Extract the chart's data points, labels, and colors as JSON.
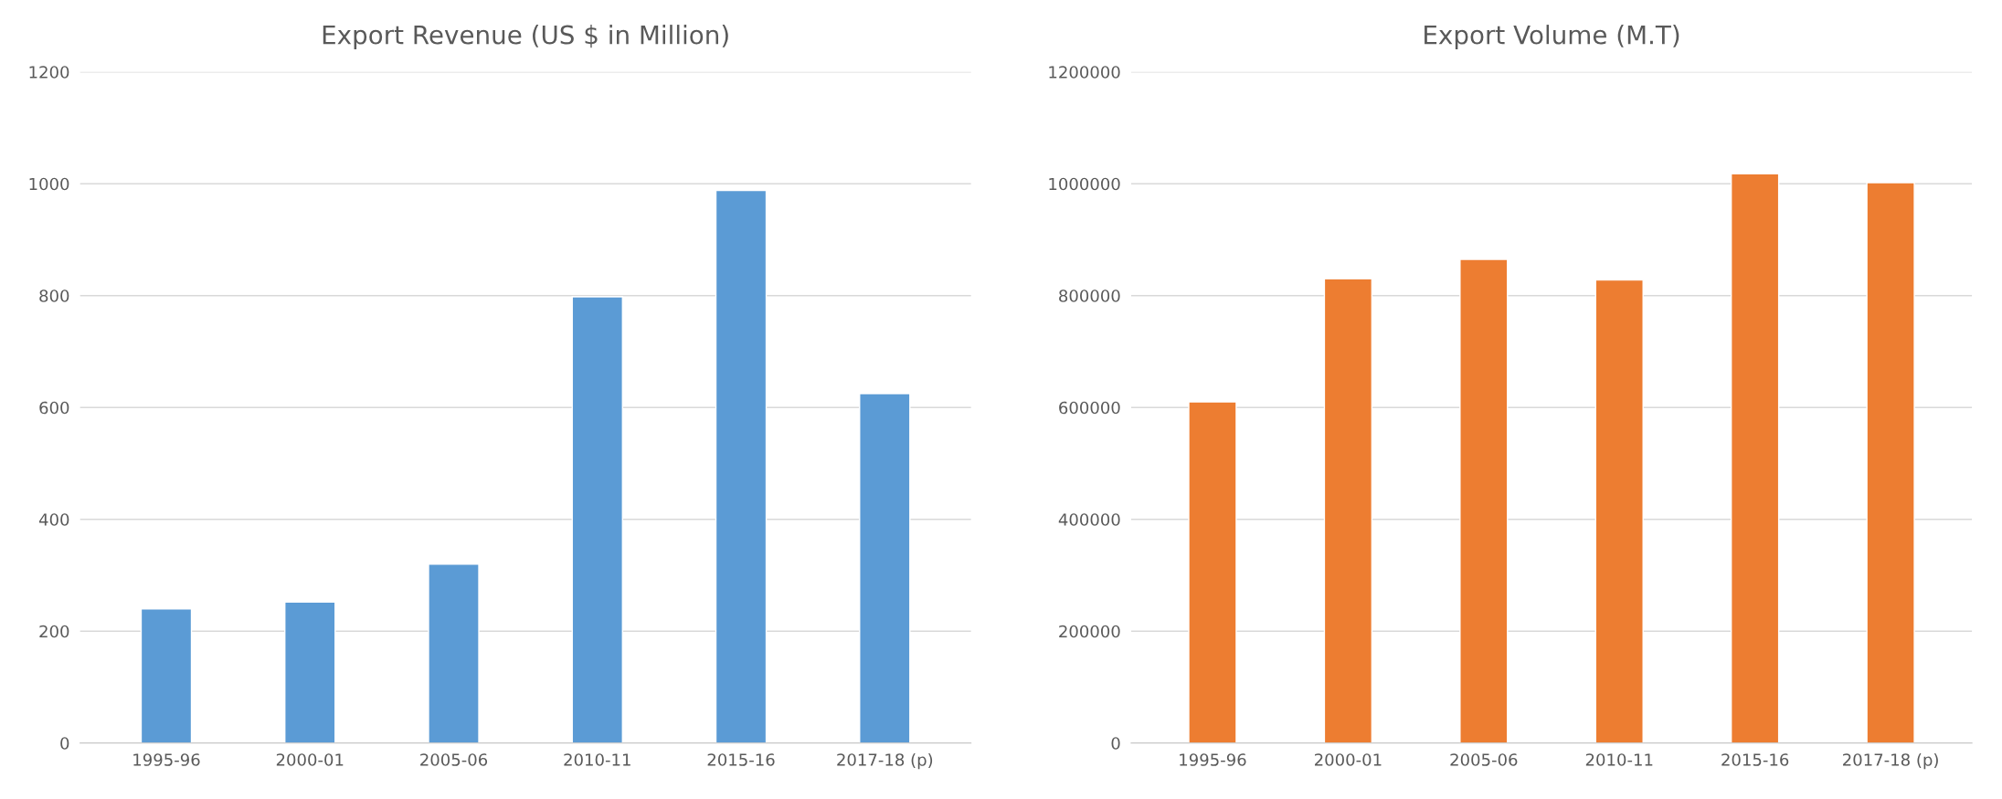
{
  "chart_data": [
    {
      "type": "bar",
      "title": "Export Revenue (US $ in Million)",
      "categories": [
        "1995-96",
        "2000-01",
        "2005-06",
        "2010-11",
        "2015-16",
        "2017-18 (p)"
      ],
      "values": [
        240,
        252,
        320,
        798,
        988,
        625
      ],
      "color": "#5b9bd5",
      "ylim": [
        0,
        1200
      ],
      "yticks": [
        0,
        200,
        400,
        600,
        800,
        1000,
        1200
      ],
      "grid": "y"
    },
    {
      "type": "bar",
      "title": "Export Volume (M.T)",
      "categories": [
        "1995-96",
        "2000-01",
        "2005-06",
        "2010-11",
        "2015-16",
        "2017-18 (p)"
      ],
      "values": [
        610000,
        830000,
        865000,
        828000,
        1018000,
        1002000
      ],
      "color": "#ed7d31",
      "ylim": [
        0,
        1200000
      ],
      "yticks": [
        0,
        200000,
        400000,
        600000,
        800000,
        1000000,
        1200000
      ],
      "grid": "y"
    }
  ]
}
